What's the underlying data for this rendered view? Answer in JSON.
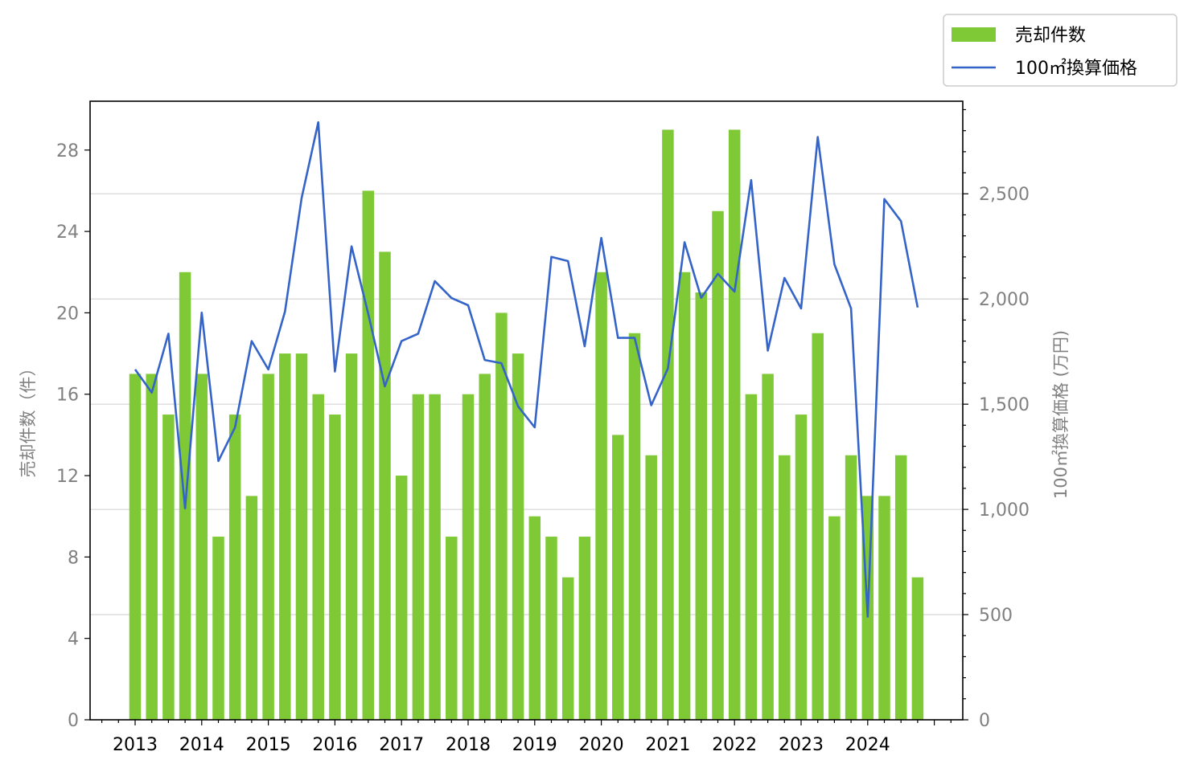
{
  "chart_data": {
    "type": "bar",
    "title": "",
    "x_ticks": [
      "2013",
      "2014",
      "2015",
      "2016",
      "2017",
      "2018",
      "2019",
      "2020",
      "2021",
      "2022",
      "2023",
      "2024"
    ],
    "quarters_start": "2013-Q1",
    "series": [
      {
        "name": "売却件数",
        "type": "bar",
        "axis": "left",
        "color": "#7ec935",
        "values": [
          17,
          17,
          15,
          22,
          17,
          9,
          15,
          11,
          17,
          18,
          18,
          16,
          15,
          18,
          26,
          23,
          12,
          16,
          16,
          9,
          16,
          17,
          20,
          18,
          10,
          9,
          7,
          9,
          22,
          14,
          19,
          13,
          29,
          22,
          21,
          25,
          29,
          16,
          17,
          13,
          15,
          19,
          10,
          13,
          11,
          11,
          13,
          7
        ]
      },
      {
        "name": "100㎡換算価格",
        "type": "line",
        "axis": "right",
        "color": "#3564c9",
        "values": [
          1665,
          1555,
          1835,
          1005,
          1935,
          1230,
          1390,
          1800,
          1665,
          1940,
          2480,
          2840,
          1655,
          2250,
          1930,
          1585,
          1800,
          1835,
          2085,
          2005,
          1970,
          1710,
          1695,
          1490,
          1390,
          2200,
          2180,
          1775,
          2290,
          1815,
          1815,
          1495,
          1670,
          2270,
          2005,
          2120,
          2035,
          2565,
          1755,
          2100,
          1955,
          2770,
          2165,
          1955,
          490,
          2475,
          2370,
          1960
        ]
      }
    ],
    "y_left": {
      "label": "売却件数（件）",
      "ticks": [
        "0",
        "4",
        "8",
        "12",
        "16",
        "20",
        "24",
        "28"
      ],
      "min": 0,
      "max": 30.4
    },
    "y_right": {
      "label": "100㎡換算価格 (万円)",
      "ticks": [
        "0",
        "500",
        "1,000",
        "1,500",
        "2,000",
        "2,500"
      ],
      "min": 0,
      "max": 2940
    },
    "legend": {
      "position": "top-right",
      "entries": [
        "売却件数",
        "100㎡換算価格"
      ]
    },
    "grid": "horizontal (right axis)",
    "colors": {
      "bar": "#7ec935",
      "line": "#3564c9",
      "axis_text": "#808080",
      "grid": "#d9d9d9"
    }
  }
}
